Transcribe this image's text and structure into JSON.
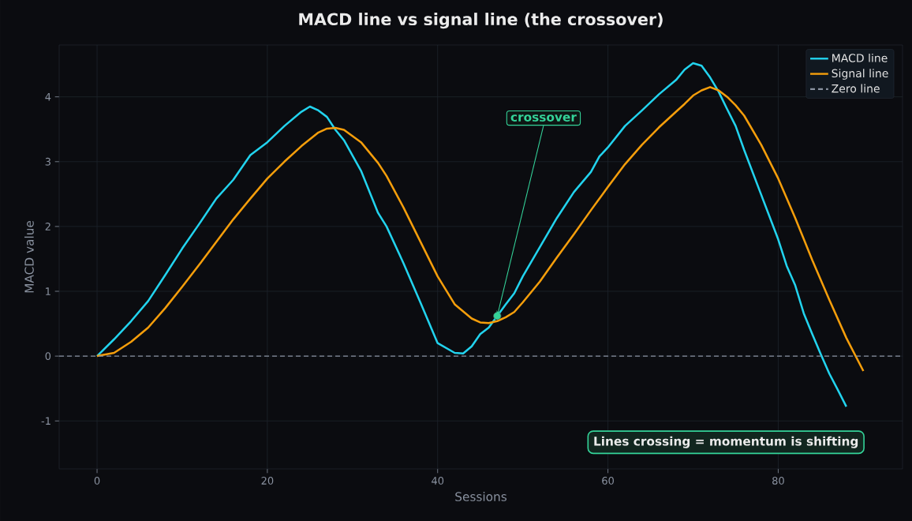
{
  "chart_data": {
    "type": "line",
    "title": "MACD line vs signal line (the crossover)",
    "xlabel": "Sessions",
    "ylabel": "MACD value",
    "series": [
      {
        "name": "MACD line",
        "color": "#22d3ee",
        "x": [
          0,
          2,
          4,
          6,
          8,
          10,
          12,
          14,
          16,
          18,
          20,
          22,
          24,
          25,
          26,
          27,
          28,
          29,
          31,
          33,
          34,
          36,
          38,
          40,
          42,
          43,
          44,
          45,
          46,
          47,
          48,
          49,
          50,
          52,
          54,
          56,
          58,
          59,
          60,
          62,
          64,
          66,
          68,
          69,
          70,
          71,
          72,
          73,
          74,
          75,
          76,
          78,
          80,
          81,
          82,
          83,
          84,
          85,
          86,
          87,
          88
        ],
        "values": [
          0,
          0.26,
          0.54,
          0.85,
          1.25,
          1.66,
          2.04,
          2.43,
          2.72,
          3.1,
          3.3,
          3.55,
          3.77,
          3.85,
          3.79,
          3.69,
          3.49,
          3.33,
          2.86,
          2.21,
          2.0,
          1.43,
          0.82,
          0.2,
          0.05,
          0.04,
          0.15,
          0.34,
          0.44,
          0.62,
          0.8,
          0.97,
          1.23,
          1.68,
          2.13,
          2.53,
          2.84,
          3.08,
          3.22,
          3.55,
          3.79,
          4.04,
          4.26,
          4.42,
          4.52,
          4.48,
          4.3,
          4.08,
          3.81,
          3.55,
          3.18,
          2.49,
          1.8,
          1.39,
          1.09,
          0.66,
          0.34,
          0.03,
          -0.27,
          -0.52,
          -0.78
        ]
      },
      {
        "name": "Signal line",
        "color": "#f59e0b",
        "x": [
          0,
          2,
          4,
          6,
          8,
          10,
          12,
          14,
          16,
          18,
          20,
          22,
          24,
          26,
          27,
          28,
          29,
          31,
          33,
          34,
          36,
          38,
          40,
          42,
          44,
          45,
          46,
          47,
          48,
          49,
          50,
          52,
          54,
          56,
          58,
          60,
          62,
          64,
          66,
          68,
          69,
          70,
          71,
          72,
          73,
          74,
          75,
          76,
          78,
          80,
          82,
          84,
          86,
          88,
          90
        ],
        "values": [
          0,
          0.05,
          0.22,
          0.44,
          0.74,
          1.07,
          1.41,
          1.76,
          2.11,
          2.43,
          2.74,
          3.0,
          3.24,
          3.45,
          3.51,
          3.52,
          3.49,
          3.3,
          2.98,
          2.78,
          2.29,
          1.76,
          1.23,
          0.8,
          0.58,
          0.52,
          0.51,
          0.54,
          0.6,
          0.68,
          0.83,
          1.15,
          1.52,
          1.88,
          2.25,
          2.61,
          2.96,
          3.26,
          3.53,
          3.77,
          3.89,
          4.02,
          4.1,
          4.15,
          4.1,
          4.0,
          3.87,
          3.71,
          3.26,
          2.74,
          2.13,
          1.48,
          0.87,
          0.28,
          -0.23
        ]
      }
    ],
    "xlim": [
      -4.45,
      94.6
    ],
    "ylim": [
      -1.74,
      4.8
    ],
    "xticks": [
      0,
      20,
      40,
      60,
      80
    ],
    "yticks": [
      -1,
      0,
      1,
      2,
      3,
      4
    ],
    "grid": true,
    "legend": "top right",
    "ref_lines": [
      {
        "axis": "y",
        "value": 0,
        "label": "Zero line",
        "color": "#8b93a1",
        "line_style": "dashed"
      }
    ],
    "annotations": [
      {
        "text": "crossover",
        "x": 47,
        "y": 0.62
      },
      "Lines crossing = momentum is shifting"
    ]
  }
}
